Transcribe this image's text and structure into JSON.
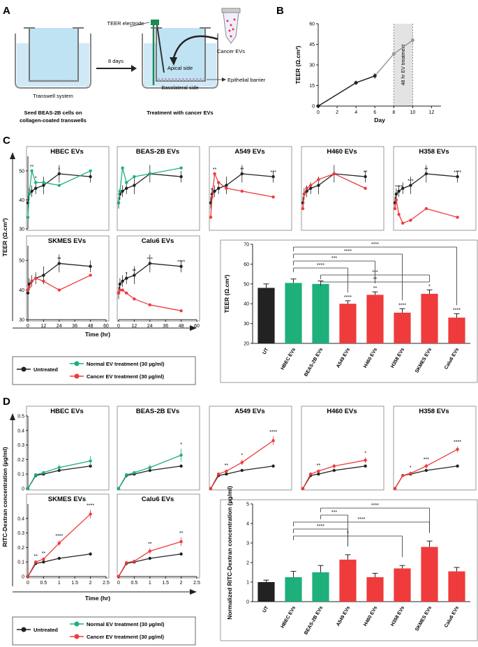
{
  "panels": {
    "A": "A",
    "B": "B",
    "C": "C",
    "D": "D"
  },
  "colors": {
    "untreated": "#222222",
    "normal": "#1db07a",
    "cancer": "#ef3b3b",
    "grey": "#9a9a9a"
  },
  "panel_a": {
    "teer_electrode": "TEER electrode",
    "transwell_system": "Transwell system",
    "seed_text_1": "Seed BEAS-2B cells on",
    "seed_text_2": "collagen-coated transwells",
    "days": "8 days",
    "cancer_evs": "Cancer EVs",
    "apical": "Apical side",
    "basolateral": "Basolateral side",
    "epithelial": "Epithelial barrier",
    "treatment": "Treatment with cancer EVs"
  },
  "legend": {
    "untreated": "Untreated",
    "normal": "Normal EV treatment (30 µg/ml)",
    "cancer": "Cancer EV treatment (30 µg/ml)"
  },
  "chart_data": [
    {
      "id": "B",
      "type": "line",
      "title": "",
      "xlabel": "Day",
      "ylabel": "TEER (Ω.cm²)",
      "xlim": [
        0,
        13
      ],
      "ylim": [
        0,
        60
      ],
      "xticks": [
        0,
        2,
        4,
        6,
        8,
        10,
        12
      ],
      "yticks": [
        0,
        15,
        30,
        45,
        60
      ],
      "annotation": "48 hr EV treatment",
      "shaded_range": [
        8,
        10
      ],
      "series": [
        {
          "name": "TEER",
          "x": [
            0,
            4,
            6,
            8,
            10
          ],
          "y": [
            0,
            17,
            22,
            38,
            48
          ],
          "err": [
            0,
            1.5,
            2,
            2,
            2
          ],
          "grey_from_index": 3
        }
      ]
    },
    {
      "id": "C-lines",
      "type": "line",
      "xlabel": "Time (hr)",
      "ylabel": "TEER (Ω.cm²)",
      "xlim": [
        0,
        60
      ],
      "ylim": [
        30,
        55
      ],
      "xticks": [
        0,
        12,
        24,
        36,
        48,
        60
      ],
      "yticks": [
        30,
        40,
        50
      ],
      "x": [
        0,
        1,
        3,
        6,
        12,
        24,
        48
      ],
      "untreated": [
        39,
        42,
        43,
        44,
        45,
        49,
        48
      ],
      "untreated_err": [
        2,
        2,
        2,
        2,
        3,
        3,
        2
      ],
      "subplots": [
        {
          "title": "HBEC EVs",
          "group": "normal",
          "values": [
            34,
            42,
            50,
            46,
            46,
            45,
            50
          ],
          "stars": [
            {
              "x": 3,
              "label": "**"
            },
            {
              "x": 6,
              "label": "*"
            },
            {
              "x": 24,
              "label": "*"
            }
          ]
        },
        {
          "title": "BEAS-2B EVs",
          "group": "normal",
          "values": [
            39,
            43,
            51,
            46,
            48,
            49,
            51
          ],
          "stars": []
        },
        {
          "title": "A549 EVs",
          "group": "cancer",
          "values": [
            34,
            41,
            49,
            46,
            44,
            43,
            41
          ],
          "stars": [
            {
              "x": 1,
              "label": "*"
            },
            {
              "x": 3,
              "label": "**"
            },
            {
              "x": 24,
              "label": "**"
            },
            {
              "x": 48,
              "label": "***"
            }
          ]
        },
        {
          "title": "H460 EVs",
          "group": "cancer",
          "values": [
            37,
            42,
            44,
            45,
            47,
            49,
            44
          ],
          "stars": [
            {
              "x": 48,
              "label": "**"
            }
          ]
        },
        {
          "title": "H358 EVs",
          "group": "cancer",
          "values": [
            37,
            40,
            35,
            32,
            33,
            37,
            34
          ],
          "stars": [
            {
              "x": 3,
              "label": "****"
            },
            {
              "x": 12,
              "label": "***"
            },
            {
              "x": 24,
              "label": "**"
            },
            {
              "x": 48,
              "label": "****"
            }
          ]
        },
        {
          "title": "SKMES EVs",
          "group": "cancer",
          "values": [
            40,
            41,
            43,
            44,
            43,
            40,
            45
          ],
          "stars": [
            {
              "x": 24,
              "label": "**"
            }
          ]
        },
        {
          "title": "Calu6 EVs",
          "group": "cancer",
          "values": [
            39,
            40,
            40,
            39,
            37,
            35,
            33
          ],
          "stars": [
            {
              "x": 6,
              "label": "*"
            },
            {
              "x": 12,
              "label": "**"
            },
            {
              "x": 24,
              "label": "***"
            },
            {
              "x": 48,
              "label": "****"
            }
          ]
        }
      ]
    },
    {
      "id": "C-bar",
      "type": "bar",
      "ylabel": "TEER (Ω.cm²)",
      "ylim": [
        20,
        70
      ],
      "yticks": [
        20,
        30,
        40,
        50,
        60,
        70
      ],
      "categories": [
        "UT",
        "HBEC EVs",
        "BEAS-2B EVs",
        "A549 EVs",
        "H460 EVs",
        "H358 EVs",
        "SKMES EVs",
        "Calu6 EVs"
      ],
      "groups": [
        "untreated",
        "normal",
        "normal",
        "cancer",
        "cancer",
        "cancer",
        "cancer",
        "cancer"
      ],
      "values": [
        48,
        50.5,
        50,
        40,
        44.5,
        35.5,
        45,
        33
      ],
      "err": [
        2,
        2,
        1.5,
        1.5,
        1.5,
        2,
        2,
        2
      ],
      "stars": [
        "",
        "",
        "",
        "****",
        "**",
        "****",
        "*",
        "****"
      ],
      "brackets": [
        {
          "from": 1,
          "to": 7,
          "label": "****"
        },
        {
          "from": 1,
          "to": 5,
          "label": "****"
        },
        {
          "from": 1,
          "to": 4,
          "label": "***"
        },
        {
          "from": 1,
          "to": 3,
          "label": "****"
        },
        {
          "from": 2,
          "to": 6,
          "label": "***"
        },
        {
          "from": 2,
          "to": 6,
          "label": "**"
        }
      ]
    },
    {
      "id": "D-lines",
      "type": "line",
      "xlabel": "Time (hr)",
      "ylabel": "RITC-Dextran concentration (µg/ml)",
      "xlim": [
        0,
        2.5
      ],
      "ylim": [
        0,
        0.5
      ],
      "xticks": [
        0,
        0.5,
        1,
        1.5,
        2,
        2.5
      ],
      "yticks": [
        0,
        0.1,
        0.2,
        0.3,
        0.4,
        0.5
      ],
      "yticks_bottom": [
        0,
        0.1,
        0.2,
        0.3,
        0.4
      ],
      "x": [
        0,
        0.25,
        0.5,
        1,
        2
      ],
      "untreated": [
        0,
        0.09,
        0.1,
        0.125,
        0.155
      ],
      "subplots": [
        {
          "title": "HBEC EVs",
          "group": "normal",
          "values": [
            0,
            0.095,
            0.11,
            0.145,
            0.19
          ],
          "err": [
            0,
            0.01,
            0.01,
            0.02,
            0.035
          ],
          "stars": []
        },
        {
          "title": "BEAS-2B EVs",
          "group": "normal",
          "values": [
            0,
            0.095,
            0.11,
            0.145,
            0.23
          ],
          "err": [
            0,
            0.01,
            0.01,
            0.02,
            0.045
          ],
          "stars": [
            {
              "x": 2,
              "label": "*"
            }
          ]
        },
        {
          "title": "A549 EVs",
          "group": "cancer",
          "values": [
            0,
            0.1,
            0.12,
            0.18,
            0.33
          ],
          "err": [
            0,
            0.01,
            0.01,
            0.02,
            0.03
          ],
          "stars": [
            {
              "x": 0.5,
              "label": "**"
            },
            {
              "x": 1,
              "label": "*"
            },
            {
              "x": 2,
              "label": "****"
            }
          ]
        },
        {
          "title": "H460 EVs",
          "group": "cancer",
          "values": [
            0,
            0.1,
            0.12,
            0.155,
            0.195
          ],
          "err": [
            0,
            0.01,
            0.01,
            0.015,
            0.02
          ],
          "stars": [
            {
              "x": 0.5,
              "label": "**"
            },
            {
              "x": 2,
              "label": "*"
            }
          ]
        },
        {
          "title": "H358 EVs",
          "group": "cancer",
          "values": [
            0,
            0.09,
            0.105,
            0.155,
            0.27
          ],
          "err": [
            0,
            0.01,
            0.01,
            0.015,
            0.02
          ],
          "stars": [
            {
              "x": 0.5,
              "label": "*"
            },
            {
              "x": 1,
              "label": "***"
            },
            {
              "x": 2,
              "label": "****"
            }
          ]
        },
        {
          "title": "SKMES EVs",
          "group": "cancer",
          "values": [
            0,
            0.1,
            0.12,
            0.23,
            0.43
          ],
          "err": [
            0,
            0.01,
            0.01,
            0.02,
            0.03
          ],
          "stars": [
            {
              "x": 0.25,
              "label": "**"
            },
            {
              "x": 0.5,
              "label": "**"
            },
            {
              "x": 1,
              "label": "****"
            },
            {
              "x": 2,
              "label": "****"
            }
          ]
        },
        {
          "title": "Calu6 EVs",
          "group": "cancer",
          "values": [
            0,
            0.095,
            0.105,
            0.175,
            0.24
          ],
          "err": [
            0,
            0.01,
            0.01,
            0.02,
            0.03
          ],
          "stars": [
            {
              "x": 1,
              "label": "**"
            },
            {
              "x": 2,
              "label": "**"
            }
          ]
        }
      ]
    },
    {
      "id": "D-bar",
      "type": "bar",
      "ylabel": "Normalized RITC-Dextran concentration (µg/ml)",
      "ylim": [
        0,
        5
      ],
      "yticks": [
        0,
        1,
        2,
        3,
        4,
        5
      ],
      "categories": [
        "UT",
        "HBEC EVs",
        "BEAS-2B EVs",
        "A549 EVs",
        "H460 EVs",
        "H358 EVs",
        "SKMES EVs",
        "Calu6 EVs"
      ],
      "groups": [
        "untreated",
        "normal",
        "normal",
        "cancer",
        "cancer",
        "cancer",
        "cancer",
        "cancer"
      ],
      "values": [
        1.0,
        1.25,
        1.5,
        2.15,
        1.25,
        1.7,
        2.8,
        1.55
      ],
      "err": [
        0.1,
        0.3,
        0.35,
        0.25,
        0.2,
        0.15,
        0.3,
        0.2
      ],
      "brackets": [
        {
          "from": 2,
          "to": 6,
          "label": "****"
        },
        {
          "from": 2,
          "to": 3,
          "label": "***"
        },
        {
          "from": 1,
          "to": 6,
          "label": "****"
        },
        {
          "from": 1,
          "to": 3,
          "label": "****"
        },
        {
          "from": 1,
          "to": 5,
          "label": "*"
        }
      ]
    }
  ]
}
